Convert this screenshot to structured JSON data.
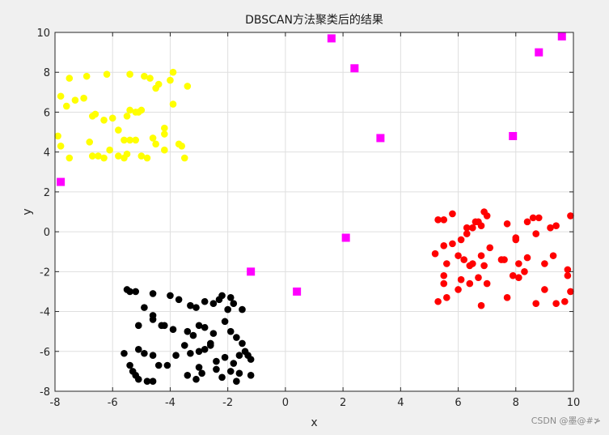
{
  "chart_data": {
    "type": "scatter",
    "title": "DBSCAN方法聚类后的结果",
    "xlabel": "x",
    "ylabel": "y",
    "xlim": [
      -8,
      10
    ],
    "ylim": [
      -8,
      10
    ],
    "xticks": [
      "-8",
      "-6",
      "-4",
      "-2",
      "0",
      "2",
      "4",
      "6",
      "8",
      "10"
    ],
    "yticks": [
      "10",
      "8",
      "6",
      "4",
      "2",
      "0",
      "-2",
      "-4",
      "-6",
      "-8"
    ],
    "xtick_values": [
      -8,
      -6,
      -4,
      -2,
      0,
      2,
      4,
      6,
      8,
      10
    ],
    "ytick_values": [
      10,
      8,
      6,
      4,
      2,
      0,
      -2,
      -4,
      -6,
      -8
    ],
    "grid": true,
    "legend": "none",
    "series": [
      {
        "color": "#ffff00",
        "marker": "circle",
        "points": [
          [
            -7.8,
            6.8
          ],
          [
            -7.6,
            6.3
          ],
          [
            -7.5,
            7.7
          ],
          [
            -7.3,
            6.6
          ],
          [
            -7.0,
            6.7
          ],
          [
            -6.9,
            7.8
          ],
          [
            -6.6,
            5.9
          ],
          [
            -6.2,
            7.9
          ],
          [
            -6.3,
            5.6
          ],
          [
            -6.0,
            5.7
          ],
          [
            -5.8,
            5.1
          ],
          [
            -5.6,
            4.6
          ],
          [
            -5.5,
            5.8
          ],
          [
            -5.4,
            7.9
          ],
          [
            -5.2,
            6.0
          ],
          [
            -5.0,
            6.1
          ],
          [
            -4.9,
            7.8
          ],
          [
            -4.7,
            7.7
          ],
          [
            -4.5,
            7.2
          ],
          [
            -4.4,
            7.4
          ],
          [
            -4.2,
            5.2
          ],
          [
            -4.2,
            4.9
          ],
          [
            -4.0,
            7.6
          ],
          [
            -3.9,
            6.4
          ],
          [
            -3.9,
            8.0
          ],
          [
            -3.6,
            4.3
          ],
          [
            -3.5,
            3.7
          ],
          [
            -3.4,
            7.3
          ],
          [
            -7.9,
            4.8
          ],
          [
            -7.8,
            4.3
          ],
          [
            -7.5,
            3.7
          ],
          [
            -6.8,
            4.5
          ],
          [
            -6.7,
            3.8
          ],
          [
            -6.5,
            3.8
          ],
          [
            -6.3,
            3.7
          ],
          [
            -6.1,
            4.1
          ],
          [
            -5.8,
            3.8
          ],
          [
            -5.6,
            3.7
          ],
          [
            -5.5,
            3.9
          ],
          [
            -5.4,
            4.6
          ],
          [
            -5.2,
            4.6
          ],
          [
            -5.0,
            3.8
          ],
          [
            -4.8,
            3.7
          ],
          [
            -4.6,
            4.7
          ],
          [
            -4.5,
            4.4
          ],
          [
            -4.2,
            4.1
          ],
          [
            -5.1,
            6.0
          ],
          [
            -5.4,
            6.1
          ],
          [
            -6.7,
            5.8
          ],
          [
            -3.7,
            4.4
          ]
        ]
      },
      {
        "color": "#000000",
        "marker": "circle",
        "points": [
          [
            -5.5,
            -2.9
          ],
          [
            -5.4,
            -3.0
          ],
          [
            -5.2,
            -3.0
          ],
          [
            -4.6,
            -3.1
          ],
          [
            -4.0,
            -3.2
          ],
          [
            -3.7,
            -3.4
          ],
          [
            -3.3,
            -3.7
          ],
          [
            -3.1,
            -3.8
          ],
          [
            -2.8,
            -3.5
          ],
          [
            -2.5,
            -3.6
          ],
          [
            -2.3,
            -3.4
          ],
          [
            -2.2,
            -3.2
          ],
          [
            -1.9,
            -3.3
          ],
          [
            -1.8,
            -3.6
          ],
          [
            -1.5,
            -3.9
          ],
          [
            -4.9,
            -3.8
          ],
          [
            -4.6,
            -4.2
          ],
          [
            -4.3,
            -4.7
          ],
          [
            -4.6,
            -4.4
          ],
          [
            -5.1,
            -4.7
          ],
          [
            -3.4,
            -5.0
          ],
          [
            -3.2,
            -5.2
          ],
          [
            -3.0,
            -4.7
          ],
          [
            -2.8,
            -4.8
          ],
          [
            -2.5,
            -5.1
          ],
          [
            -2.1,
            -4.5
          ],
          [
            -1.9,
            -5.0
          ],
          [
            -1.7,
            -5.3
          ],
          [
            -1.5,
            -5.6
          ],
          [
            -5.6,
            -6.1
          ],
          [
            -5.4,
            -6.7
          ],
          [
            -5.2,
            -7.2
          ],
          [
            -4.9,
            -6.1
          ],
          [
            -4.6,
            -6.2
          ],
          [
            -4.4,
            -6.7
          ],
          [
            -3.8,
            -6.2
          ],
          [
            -3.5,
            -5.7
          ],
          [
            -3.3,
            -6.1
          ],
          [
            -3.0,
            -6.0
          ],
          [
            -2.8,
            -5.9
          ],
          [
            -2.6,
            -5.7
          ],
          [
            -2.4,
            -6.5
          ],
          [
            -2.1,
            -6.3
          ],
          [
            -1.8,
            -6.6
          ],
          [
            -1.6,
            -6.2
          ],
          [
            -1.4,
            -6.0
          ],
          [
            -1.2,
            -6.4
          ],
          [
            -5.1,
            -7.4
          ],
          [
            -4.8,
            -7.5
          ],
          [
            -4.6,
            -7.5
          ],
          [
            -3.4,
            -7.2
          ],
          [
            -3.1,
            -7.4
          ],
          [
            -2.9,
            -7.1
          ],
          [
            -2.4,
            -6.9
          ],
          [
            -2.2,
            -7.3
          ],
          [
            -1.9,
            -7.0
          ],
          [
            -1.7,
            -7.5
          ],
          [
            -1.2,
            -7.2
          ],
          [
            -4.1,
            -6.7
          ],
          [
            -2.6,
            -5.6
          ],
          [
            -4.2,
            -4.7
          ],
          [
            -2.0,
            -3.9
          ],
          [
            -5.1,
            -5.9
          ],
          [
            -3.9,
            -4.9
          ],
          [
            -1.3,
            -6.2
          ],
          [
            -5.3,
            -7.0
          ],
          [
            -3.0,
            -6.8
          ],
          [
            -1.6,
            -7.1
          ]
        ]
      },
      {
        "color": "#ff0000",
        "marker": "circle",
        "points": [
          [
            5.3,
            0.6
          ],
          [
            5.5,
            0.6
          ],
          [
            5.8,
            0.9
          ],
          [
            6.1,
            -0.4
          ],
          [
            6.3,
            0.2
          ],
          [
            6.5,
            0.2
          ],
          [
            6.7,
            0.5
          ],
          [
            6.9,
            1.0
          ],
          [
            7.0,
            0.8
          ],
          [
            6.8,
            0.3
          ],
          [
            7.7,
            0.4
          ],
          [
            8.4,
            0.5
          ],
          [
            8.6,
            0.7
          ],
          [
            9.2,
            0.2
          ],
          [
            9.4,
            0.3
          ],
          [
            9.9,
            0.8
          ],
          [
            5.2,
            -1.1
          ],
          [
            5.5,
            -0.7
          ],
          [
            5.8,
            -0.6
          ],
          [
            6.2,
            -1.4
          ],
          [
            6.5,
            -1.6
          ],
          [
            6.8,
            -1.2
          ],
          [
            7.1,
            -0.8
          ],
          [
            7.5,
            -1.4
          ],
          [
            8.0,
            -0.4
          ],
          [
            8.1,
            -1.6
          ],
          [
            8.4,
            -1.3
          ],
          [
            8.7,
            -0.1
          ],
          [
            9.0,
            -1.6
          ],
          [
            9.3,
            -1.2
          ],
          [
            5.3,
            -3.5
          ],
          [
            5.5,
            -2.2
          ],
          [
            5.5,
            -2.6
          ],
          [
            5.6,
            -3.3
          ],
          [
            6.0,
            -2.9
          ],
          [
            6.1,
            -2.4
          ],
          [
            6.4,
            -2.6
          ],
          [
            6.7,
            -2.3
          ],
          [
            6.8,
            -3.7
          ],
          [
            7.0,
            -2.6
          ],
          [
            7.7,
            -3.3
          ],
          [
            7.9,
            -2.2
          ],
          [
            8.1,
            -2.3
          ],
          [
            8.3,
            -2.0
          ],
          [
            8.7,
            -3.6
          ],
          [
            9.0,
            -2.9
          ],
          [
            9.4,
            -3.6
          ],
          [
            9.7,
            -3.5
          ],
          [
            9.8,
            -2.2
          ],
          [
            9.9,
            -3.0
          ],
          [
            6.0,
            -1.2
          ],
          [
            6.3,
            -0.1
          ],
          [
            6.6,
            0.5
          ],
          [
            6.9,
            -1.7
          ],
          [
            7.6,
            -1.4
          ],
          [
            8.0,
            -0.3
          ],
          [
            8.8,
            0.7
          ],
          [
            9.8,
            -1.9
          ],
          [
            5.6,
            -1.6
          ],
          [
            6.4,
            -1.7
          ]
        ]
      },
      {
        "color": "#ff00ff",
        "marker": "square",
        "points": [
          [
            -7.8,
            2.5
          ],
          [
            -1.2,
            -2.0
          ],
          [
            0.4,
            -3.0
          ],
          [
            1.6,
            9.7
          ],
          [
            2.1,
            -0.3
          ],
          [
            2.4,
            8.2
          ],
          [
            3.3,
            4.7
          ],
          [
            7.9,
            4.8
          ],
          [
            8.8,
            9.0
          ],
          [
            9.6,
            9.8
          ]
        ]
      }
    ]
  },
  "watermark": "CSDN @墨@#≯"
}
